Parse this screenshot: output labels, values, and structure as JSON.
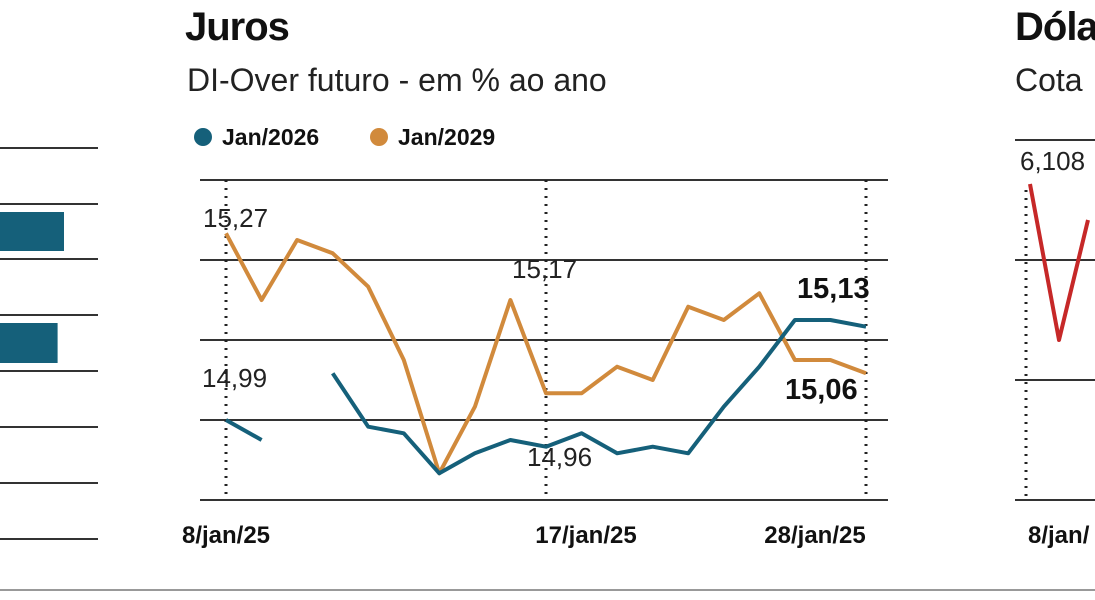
{
  "chart_data": [
    {
      "type": "bar",
      "panel": "left (cropped)",
      "orientation": "horizontal",
      "series": [
        {
          "name": "",
          "values": [
            null,
            1,
            null,
            0.9,
            null,
            null,
            null
          ]
        }
      ],
      "colors": {
        "bar": "#15607a",
        "grid": "#333333"
      }
    },
    {
      "type": "line",
      "title": "Juros",
      "subtitle": "DI-Over futuro - em % ao ano",
      "x_ticks": [
        "8/jan/25",
        "17/jan/25",
        "28/jan/25"
      ],
      "ylim": [
        14.87,
        15.35
      ],
      "series": [
        {
          "name": "Jan/2026",
          "color": "#15607a",
          "values": [
            14.99,
            14.96,
            null,
            15.06,
            14.98,
            14.97,
            14.91,
            14.94,
            14.96,
            14.95,
            14.97,
            14.94,
            14.95,
            14.94,
            15.01,
            15.07,
            15.14,
            15.14,
            15.13
          ]
        },
        {
          "name": "Jan/2029",
          "color": "#d18a3c",
          "values": [
            15.27,
            15.17,
            15.26,
            15.24,
            15.19,
            15.08,
            14.91,
            15.01,
            15.17,
            15.03,
            15.03,
            15.07,
            15.05,
            15.16,
            15.14,
            15.18,
            15.08,
            15.08,
            15.06
          ]
        }
      ],
      "annotations": {
        "start_2029": "15,27",
        "start_2026": "14,99",
        "mid_2029": "15,17",
        "mid_2026": "14,96",
        "end_2026": "15,13",
        "end_2029": "15,06"
      }
    },
    {
      "type": "line",
      "panel": "right (cropped)",
      "title": "Dóla",
      "subtitle": "Cota",
      "x_ticks": [
        "8/jan/"
      ],
      "series": [
        {
          "name": "",
          "color": "#c62828",
          "values": [
            6.108,
            6.03,
            6.09
          ]
        }
      ],
      "annotations": {
        "start": "6,108"
      }
    }
  ]
}
